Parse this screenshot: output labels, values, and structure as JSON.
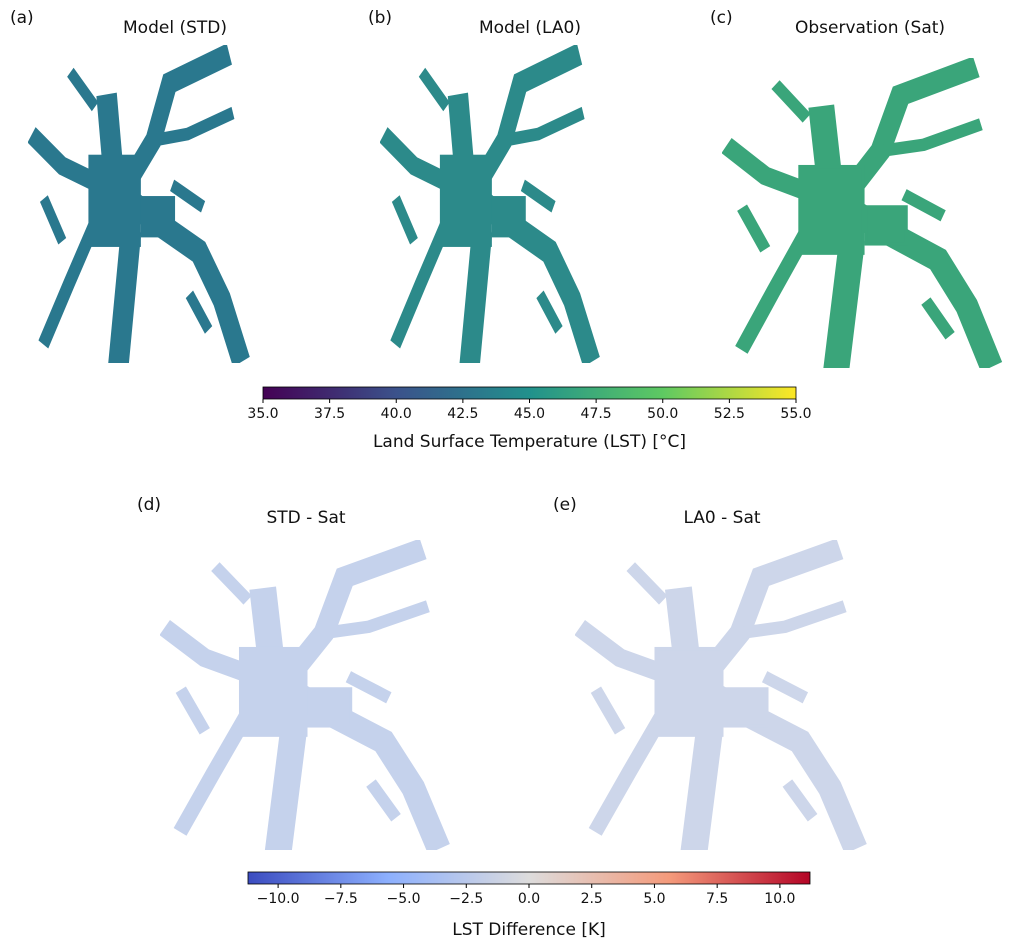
{
  "chart_data": [
    {
      "type": "heatmap",
      "panels": [
        {
          "label": "(a)",
          "title": "Model (STD)"
        },
        {
          "label": "(b)",
          "title": "Model (LA0)"
        },
        {
          "label": "(c)",
          "title": "Observation (Sat)"
        }
      ],
      "colorbar": {
        "label": "Land Surface Temperature (LST) [°C]",
        "lim": [
          35,
          55
        ],
        "ticks": [
          {
            "value": 35,
            "label": "35.0"
          },
          {
            "value": 37.5,
            "label": "37.5"
          },
          {
            "value": 40,
            "label": "40.0"
          },
          {
            "value": 42.5,
            "label": "42.5"
          },
          {
            "value": 45,
            "label": "45.0"
          },
          {
            "value": 47.5,
            "label": "47.5"
          },
          {
            "value": 50,
            "label": "50.0"
          },
          {
            "value": 52.5,
            "label": "52.5"
          },
          {
            "value": 55,
            "label": "55.0"
          }
        ],
        "colormap": [
          "#440154",
          "#3b528b",
          "#21918c",
          "#5ec962",
          "#fde725"
        ]
      }
    },
    {
      "type": "heatmap",
      "panels": [
        {
          "label": "(d)",
          "title": "STD - Sat"
        },
        {
          "label": "(e)",
          "title": "LA0 - Sat"
        }
      ],
      "colorbar": {
        "label": "LST Difference [K]",
        "lim": [
          -11.2,
          11.2
        ],
        "ticks": [
          {
            "value": -10,
            "label": "−10.0"
          },
          {
            "value": -7.5,
            "label": "−7.5"
          },
          {
            "value": -5,
            "label": "−5.0"
          },
          {
            "value": -2.5,
            "label": "−2.5"
          },
          {
            "value": 0,
            "label": "0.0"
          },
          {
            "value": 2.5,
            "label": "2.5"
          },
          {
            "value": 5,
            "label": "5.0"
          },
          {
            "value": 7.5,
            "label": "7.5"
          },
          {
            "value": 10,
            "label": "10.0"
          }
        ],
        "colormap": [
          "#3b4cc0",
          "#8db0fe",
          "#dddcdc",
          "#f49a7b",
          "#b40426"
        ]
      }
    }
  ]
}
